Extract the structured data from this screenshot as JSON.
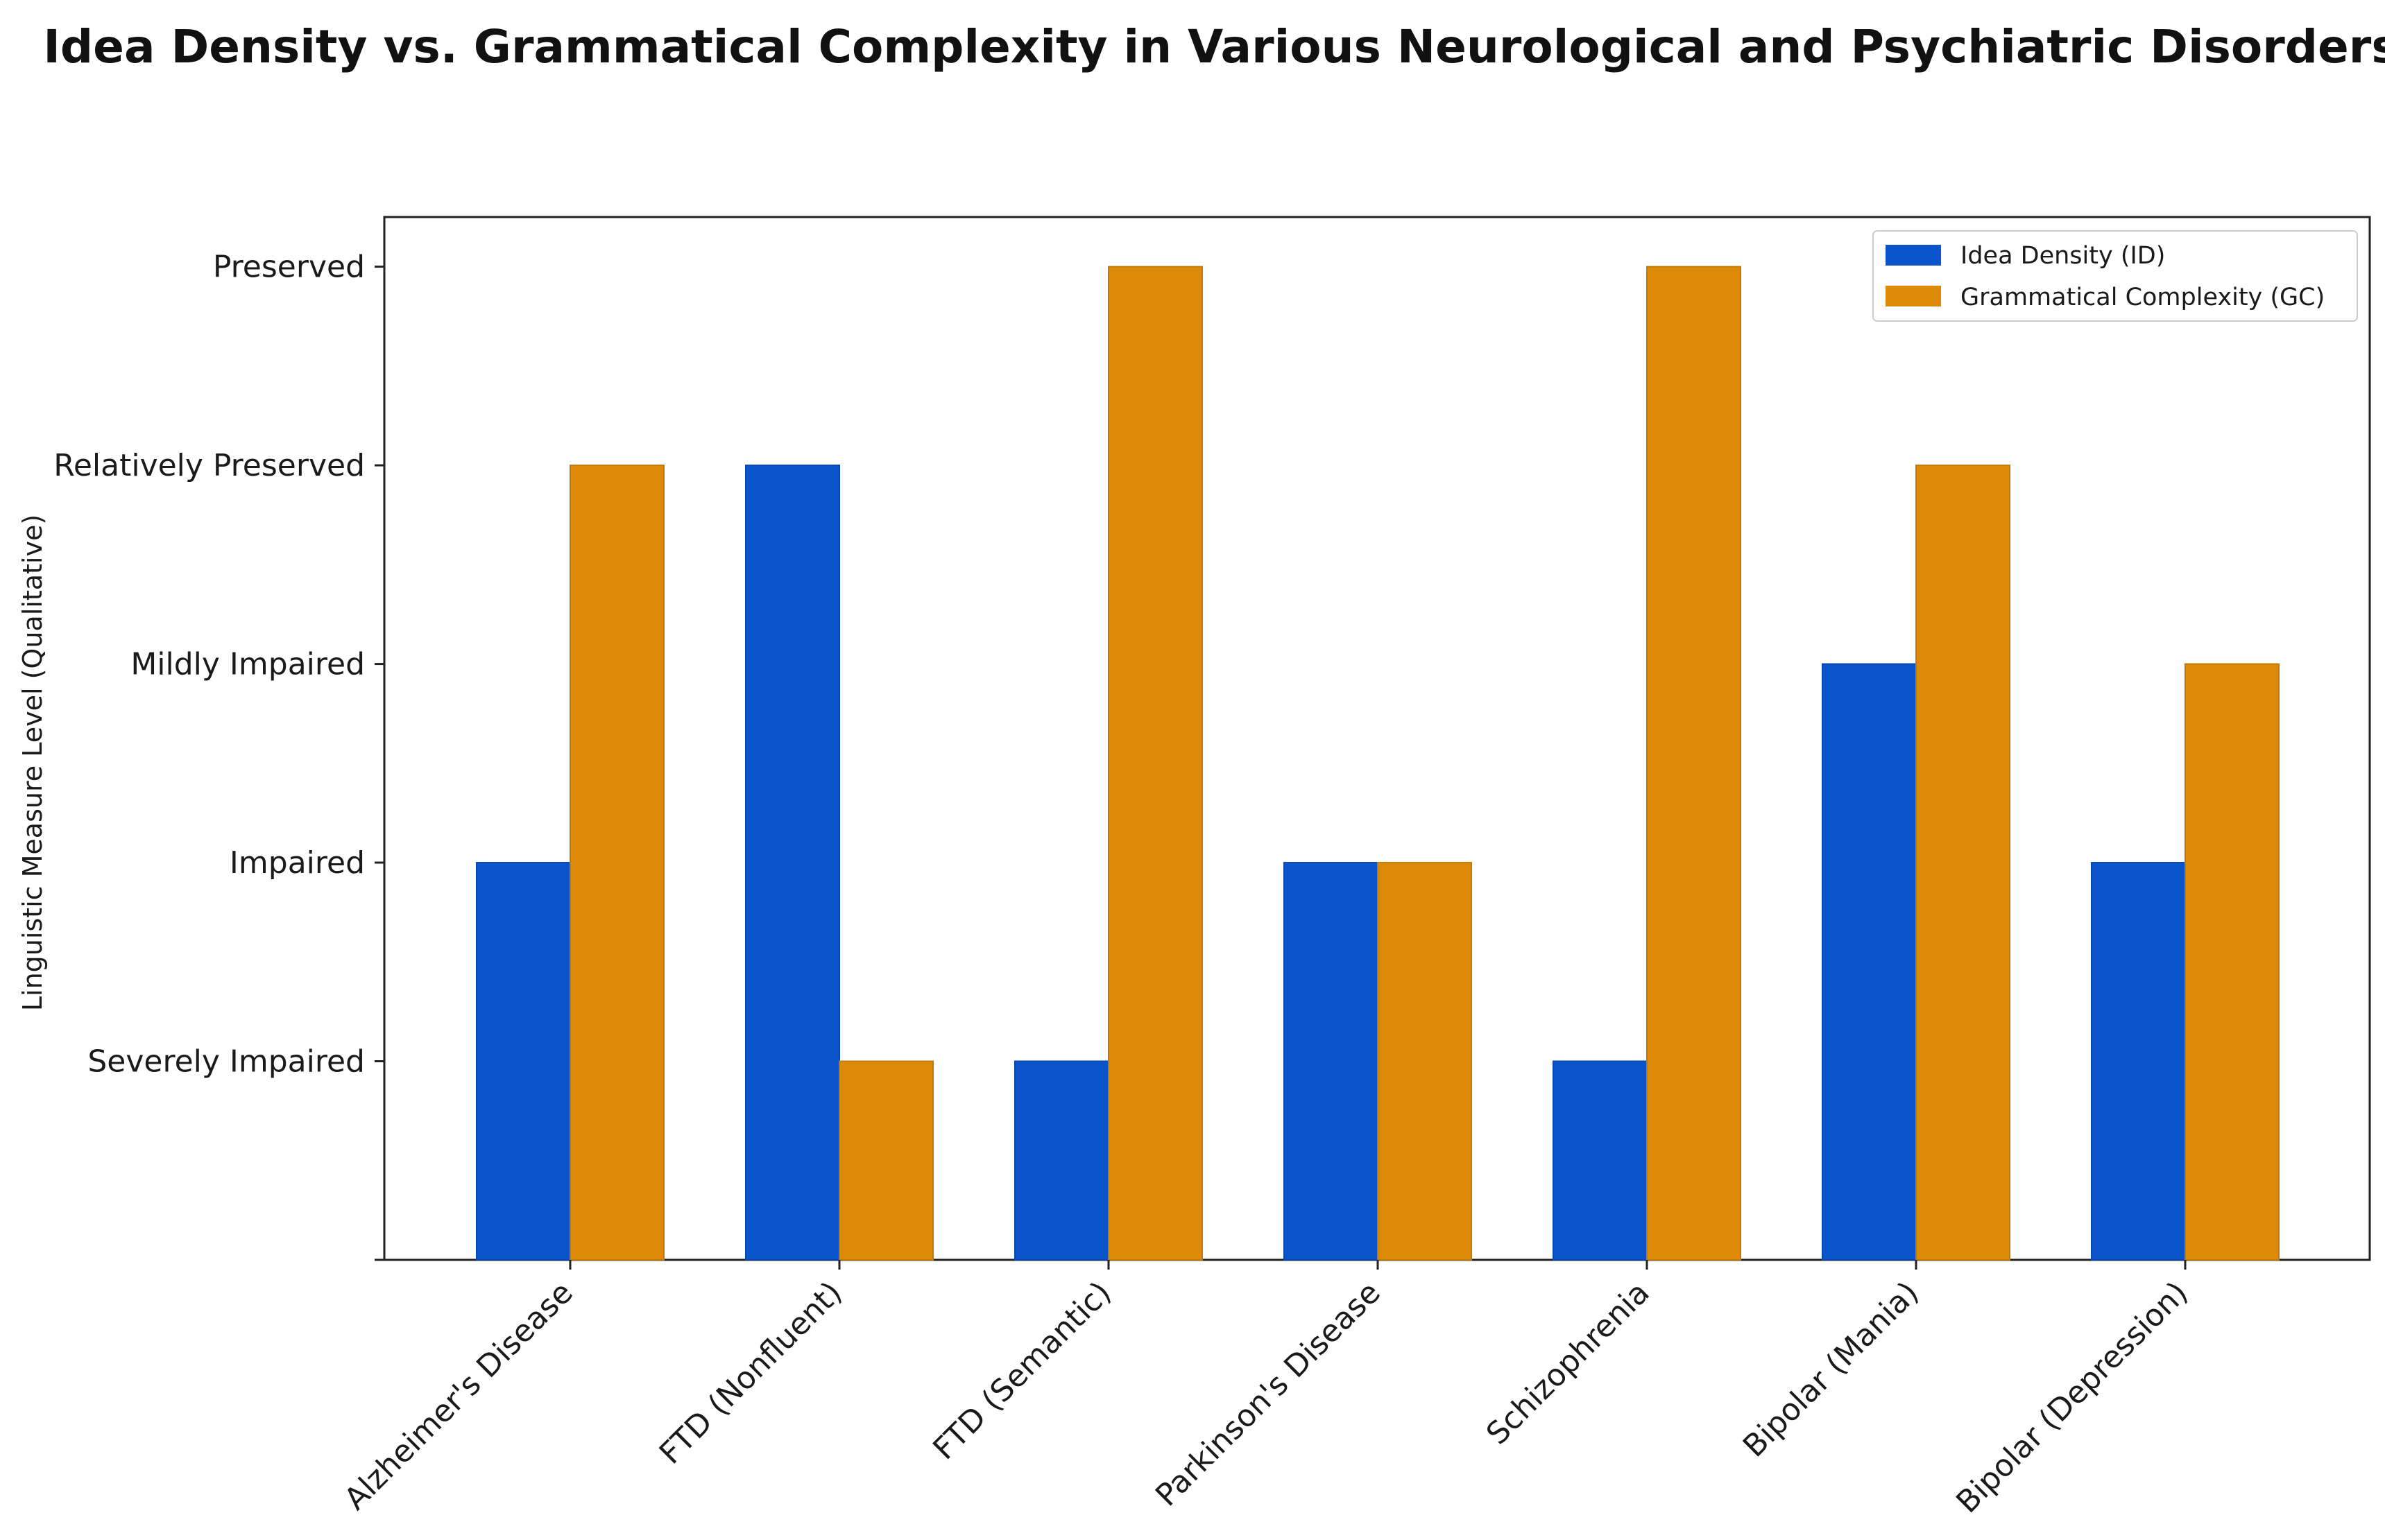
{
  "chart_data": {
    "type": "bar",
    "title": "Idea Density vs. Grammatical Complexity in Various Neurological and Psychiatric Disorders",
    "xlabel": "",
    "ylabel": "Linguistic Measure Level (Qualitative)",
    "categories": [
      "Alzheimer's Disease",
      "FTD (Nonfluent)",
      "FTD (Semantic)",
      "Parkinson's Disease",
      "Schizophrenia",
      "Bipolar (Mania)",
      "Bipolar (Depression)"
    ],
    "y_ticks": [
      {
        "value": 1,
        "label": "Severely Impaired"
      },
      {
        "value": 2,
        "label": "Impaired"
      },
      {
        "value": 3,
        "label": "Mildly Impaired"
      },
      {
        "value": 4,
        "label": "Relatively Preserved"
      },
      {
        "value": 5,
        "label": "Preserved"
      }
    ],
    "ylim": [
      0,
      5.25
    ],
    "grid": false,
    "legend_position": "top-right",
    "series": [
      {
        "name": "Idea Density (ID)",
        "color": "#0b55cc",
        "values": [
          2,
          4,
          1,
          2,
          1,
          3,
          2
        ]
      },
      {
        "name": "Grammatical Complexity (GC)",
        "color": "#dd8a08",
        "values": [
          4,
          1,
          5,
          2,
          5,
          4,
          3
        ]
      }
    ]
  }
}
